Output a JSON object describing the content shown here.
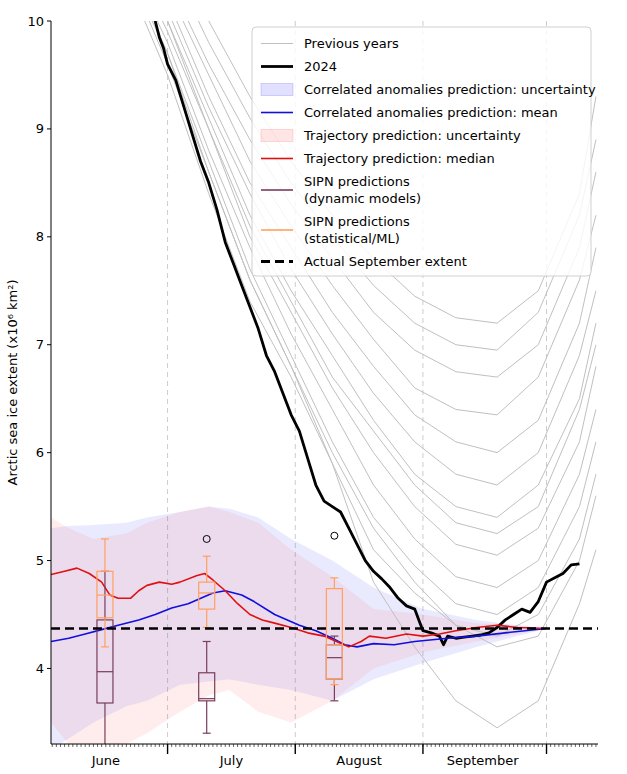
{
  "chart_data": {
    "type": "line",
    "y_label": "Arctic sea ice extent (x10⁶ km²)",
    "xlim": [
      1.7,
      134.5
    ],
    "ylim": [
      3.3,
      10
    ],
    "yticks": [
      4,
      5,
      6,
      7,
      8,
      9,
      10
    ],
    "xticks": [
      {
        "value": 15,
        "label": "June"
      },
      {
        "value": 45.5,
        "label": "July"
      },
      {
        "value": 76.5,
        "label": "August"
      },
      {
        "value": 106.5,
        "label": "September"
      }
    ],
    "vlines": [
      30,
      61,
      92,
      122
    ],
    "legend": "upper right",
    "grid": false,
    "series": [
      {
        "name": "Previous years",
        "type": "line",
        "color": "#c0c0c0",
        "x": [
          20,
          30,
          40,
          50,
          60,
          70,
          80,
          90,
          100,
          110,
          120,
          130,
          134
        ],
        "lines": [
          [
            11.5,
            10.8,
            10.0,
            9.3,
            8.7,
            8.2,
            7.8,
            7.45,
            7.25,
            7.2,
            7.5,
            8.4,
            9.3
          ],
          [
            11.3,
            10.6,
            9.8,
            9.1,
            8.5,
            8.0,
            7.55,
            7.2,
            7.0,
            6.95,
            7.3,
            8.2,
            8.9
          ],
          [
            11.2,
            10.4,
            9.6,
            8.9,
            8.3,
            7.8,
            7.3,
            6.95,
            6.75,
            6.7,
            7.0,
            7.9,
            8.6
          ],
          [
            11.0,
            10.3,
            9.5,
            8.7,
            8.1,
            7.55,
            7.05,
            6.6,
            6.4,
            6.35,
            6.7,
            7.6,
            8.2
          ],
          [
            11.0,
            10.2,
            9.3,
            8.5,
            7.9,
            7.3,
            6.8,
            6.35,
            6.1,
            6.0,
            6.3,
            7.2,
            7.9
          ],
          [
            10.9,
            10.1,
            9.2,
            8.4,
            7.7,
            7.1,
            6.55,
            6.1,
            5.8,
            5.7,
            6.0,
            6.9,
            7.5
          ],
          [
            10.8,
            10.0,
            9.1,
            8.2,
            7.5,
            6.9,
            6.3,
            5.8,
            5.5,
            5.4,
            5.7,
            6.5,
            7.2
          ],
          [
            10.8,
            10.0,
            9.0,
            8.1,
            7.4,
            6.7,
            6.2,
            5.7,
            5.35,
            5.25,
            5.5,
            6.4,
            7.0
          ],
          [
            10.7,
            9.9,
            9.0,
            8.0,
            7.3,
            6.6,
            6.0,
            5.5,
            5.15,
            5.05,
            5.3,
            6.1,
            6.8
          ],
          [
            10.6,
            9.8,
            8.8,
            7.9,
            7.1,
            6.4,
            5.7,
            5.2,
            4.85,
            4.75,
            5.0,
            5.8,
            6.4
          ],
          [
            10.6,
            9.7,
            8.7,
            7.7,
            6.9,
            6.1,
            5.4,
            4.95,
            4.6,
            4.5,
            4.75,
            5.5,
            6.1
          ],
          [
            10.5,
            9.7,
            8.6,
            7.6,
            6.8,
            6.0,
            5.3,
            4.8,
            4.4,
            4.3,
            4.5,
            5.2,
            5.8
          ],
          [
            10.4,
            9.5,
            8.4,
            7.4,
            6.7,
            5.9,
            5.1,
            4.7,
            4.4,
            4.2,
            4.3,
            5.0,
            5.6
          ],
          [
            10.5,
            9.6,
            8.6,
            7.6,
            6.8,
            5.9,
            4.8,
            4.2,
            3.7,
            3.45,
            3.7,
            4.6,
            5.1
          ]
        ]
      },
      {
        "name": "2024",
        "type": "line",
        "color": "#000000",
        "x": [
          27,
          28,
          29,
          30,
          32,
          34,
          36,
          38,
          40,
          42,
          44,
          46,
          48,
          50,
          52,
          54,
          56,
          58,
          60,
          62,
          64,
          66,
          68,
          70,
          72,
          74,
          76,
          78,
          80,
          82,
          84,
          86,
          88,
          90,
          91,
          92,
          94,
          96,
          97,
          98,
          100,
          102,
          104,
          106,
          108,
          110,
          112,
          114,
          116,
          118,
          120,
          122,
          124,
          126,
          128,
          130
        ],
        "values": [
          10.0,
          9.85,
          9.75,
          9.6,
          9.45,
          9.2,
          8.95,
          8.7,
          8.5,
          8.25,
          7.95,
          7.75,
          7.55,
          7.35,
          7.15,
          6.9,
          6.75,
          6.55,
          6.35,
          6.2,
          5.95,
          5.7,
          5.55,
          5.5,
          5.45,
          5.3,
          5.15,
          5.0,
          4.9,
          4.83,
          4.75,
          4.65,
          4.58,
          4.55,
          4.45,
          4.35,
          4.33,
          4.3,
          4.22,
          4.3,
          4.28,
          4.29,
          4.3,
          4.31,
          4.33,
          4.38,
          4.45,
          4.5,
          4.55,
          4.52,
          4.62,
          4.8,
          4.84,
          4.88,
          4.96,
          4.97
        ]
      },
      {
        "name": "Correlated anomalies prediction: uncertainty",
        "type": "band",
        "color": "#3333ff",
        "x": [
          1.7,
          6,
          12,
          20,
          25,
          33,
          40,
          45,
          52,
          60,
          70,
          80,
          92,
          105,
          115,
          122
        ],
        "lower": [
          3.25,
          3.35,
          3.5,
          3.65,
          3.7,
          3.85,
          3.88,
          3.9,
          3.85,
          3.8,
          3.7,
          3.9,
          4.05,
          4.2,
          4.3,
          4.37
        ],
        "upper": [
          5.3,
          5.32,
          5.33,
          5.35,
          5.4,
          5.45,
          5.5,
          5.48,
          5.4,
          5.2,
          5.0,
          4.75,
          4.55,
          4.45,
          4.4,
          4.37
        ]
      },
      {
        "name": "Correlated anomalies prediction: mean",
        "type": "line",
        "color": "#1010dd",
        "x": [
          1.7,
          6,
          10,
          14,
          18,
          23,
          27,
          31,
          35,
          41,
          44,
          48,
          51,
          56,
          62,
          66,
          70,
          73,
          76,
          80,
          85,
          90,
          98,
          105,
          112,
          122
        ],
        "values": [
          4.25,
          4.28,
          4.32,
          4.36,
          4.4,
          4.45,
          4.5,
          4.56,
          4.6,
          4.7,
          4.72,
          4.68,
          4.62,
          4.5,
          4.4,
          4.35,
          4.28,
          4.22,
          4.2,
          4.23,
          4.22,
          4.25,
          4.28,
          4.3,
          4.33,
          4.37
        ]
      },
      {
        "name": "Trajectory prediction: uncertainty",
        "type": "band",
        "color": "#ff5050",
        "x": [
          1.7,
          6,
          12,
          20,
          25,
          33,
          40,
          45,
          52,
          60,
          70,
          80,
          92,
          105,
          115,
          122
        ],
        "lower": [
          3.5,
          3.3,
          3.25,
          3.3,
          3.4,
          3.6,
          3.75,
          3.8,
          3.6,
          3.5,
          3.7,
          4.0,
          4.15,
          4.25,
          4.32,
          4.37
        ],
        "upper": [
          5.4,
          5.3,
          5.2,
          5.25,
          5.35,
          5.45,
          5.5,
          5.45,
          5.35,
          5.1,
          4.85,
          4.55,
          4.5,
          4.42,
          4.4,
          4.37
        ]
      },
      {
        "name": "Trajectory prediction: median",
        "type": "line",
        "color": "#e01010",
        "x": [
          1.7,
          5,
          8,
          11,
          14,
          16,
          18,
          21,
          23,
          25,
          28,
          31,
          33,
          37,
          39,
          41,
          44,
          47,
          50,
          53,
          56,
          60,
          64,
          68,
          71,
          74,
          77,
          79,
          83,
          88,
          92,
          96,
          100,
          105,
          110,
          115,
          122
        ],
        "values": [
          4.87,
          4.9,
          4.93,
          4.88,
          4.8,
          4.68,
          4.65,
          4.65,
          4.72,
          4.77,
          4.8,
          4.78,
          4.8,
          4.86,
          4.88,
          4.82,
          4.72,
          4.6,
          4.5,
          4.45,
          4.42,
          4.38,
          4.33,
          4.3,
          4.25,
          4.2,
          4.25,
          4.3,
          4.28,
          4.32,
          4.3,
          4.32,
          4.35,
          4.38,
          4.4,
          4.38,
          4.37
        ]
      },
      {
        "name": "SIPN predictions\n(dynamic models)",
        "type": "box",
        "color": "#7a3d5c",
        "x": [
          14.8,
          39.5,
          70.5
        ],
        "boxes": [
          {
            "min": 3.25,
            "q1": 3.68,
            "median": 3.97,
            "q3": 4.45,
            "max": 4.9,
            "outliers": []
          },
          {
            "min": 3.4,
            "q1": 3.7,
            "median": 3.72,
            "q3": 3.96,
            "max": 4.25,
            "outliers": [
              5.2
            ]
          },
          {
            "min": 3.7,
            "q1": 3.9,
            "median": 4.1,
            "q3": 4.22,
            "max": 4.3,
            "outliers": [
              5.23
            ]
          }
        ]
      },
      {
        "name": "SIPN predictions\n(statistical/ML)",
        "type": "box",
        "color": "#ffa060",
        "x": [
          14.8,
          39.5,
          70.5
        ],
        "boxes": [
          {
            "min": 4.2,
            "q1": 4.47,
            "median": 4.68,
            "q3": 4.9,
            "max": 5.2,
            "outliers": []
          },
          {
            "min": 4.38,
            "q1": 4.55,
            "median": 4.7,
            "q3": 4.8,
            "max": 5.04,
            "outliers": []
          },
          {
            "min": 3.85,
            "q1": 3.9,
            "median": 4.22,
            "q3": 4.74,
            "max": 4.84,
            "outliers": []
          }
        ]
      },
      {
        "name": "Actual September extent",
        "type": "hline",
        "color": "#000000",
        "line_style": "dashed",
        "value": 4.37
      }
    ]
  }
}
